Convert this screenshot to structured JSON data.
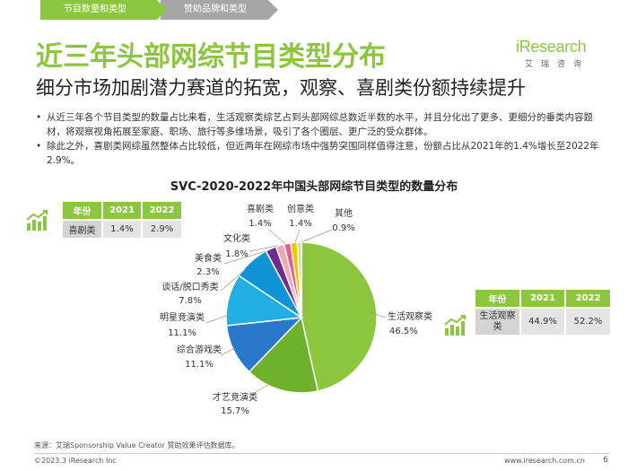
{
  "nav": {
    "tab1": "节目数量和类型",
    "tab2": "赞助品牌和类型"
  },
  "logo": {
    "name": "iResearch",
    "sub": "艾瑞咨询"
  },
  "title": "近三年头部网综节目类型分布",
  "subtitle": "细分市场加剧潜力赛道的拓宽，观察、喜剧类份额持续提升",
  "bullets": [
    "从近三年各个节目类型的数量占比来看，生活观察类综艺占到头部网综总数近半数的水平，并且分化出了更多、更细分的垂类内容题材，将观察视角拓展至家庭、职场、旅行等多维场景，吸引了各个圈层、更广泛的受众群体。",
    "除此之外，喜剧类网综虽然整体占比较低，但近两年在网综市场中强势突围同样值得注意，份额占比从2021年的1.4%增长至2022年2.9%。"
  ],
  "chart_title": "SVC-2020-2022年中国头部网综节目类型的数量分布",
  "table_left": {
    "headers": [
      "年份",
      "2021",
      "2022"
    ],
    "row": [
      "喜剧类",
      "1.4%",
      "2.9%"
    ]
  },
  "table_right": {
    "headers": [
      "年份",
      "2021",
      "2022"
    ],
    "row": [
      "生活观察类",
      "44.9%",
      "52.2%"
    ]
  },
  "colors": {
    "accent": "#8cc63f",
    "gray_tab": "#a6a6a6"
  },
  "chart_data": {
    "type": "pie",
    "title": "SVC-2020-2022年中国头部网综节目类型的数量分布",
    "slices": [
      {
        "name": "生活观察类",
        "value": 46.5,
        "label": "46.5%",
        "color": "#8cc63f"
      },
      {
        "name": "才艺竞演类",
        "value": 15.7,
        "label": "15.7%",
        "color": "#6fb12d"
      },
      {
        "name": "综合游戏类",
        "value": 11.1,
        "label": "11.1%",
        "color": "#2a78c9"
      },
      {
        "name": "明星竞演类",
        "value": 11.1,
        "label": "11.1%",
        "color": "#20aee3"
      },
      {
        "name": "谈话/脱口秀类",
        "value": 7.8,
        "label": "7.8%",
        "color": "#0e93d6"
      },
      {
        "name": "美食类",
        "value": 2.3,
        "label": "2.3%",
        "color": "#6e2d8c"
      },
      {
        "name": "文化类",
        "value": 1.8,
        "label": "1.8%",
        "color": "#f4a6b6"
      },
      {
        "name": "喜剧类",
        "value": 1.4,
        "label": "1.4%",
        "color": "#e85a87"
      },
      {
        "name": "创意类",
        "value": 1.4,
        "label": "1.4%",
        "color": "#f7c300"
      },
      {
        "name": "其他",
        "value": 0.9,
        "label": "0.9%",
        "color": "#c8e19a"
      }
    ]
  },
  "source": "来源：艾瑞Sponsorship Value Creator 赞助效果评估数据库。",
  "copyright": "©2023.3 iResearch Inc",
  "site": "www.iresearch.com.cn",
  "page": "6"
}
